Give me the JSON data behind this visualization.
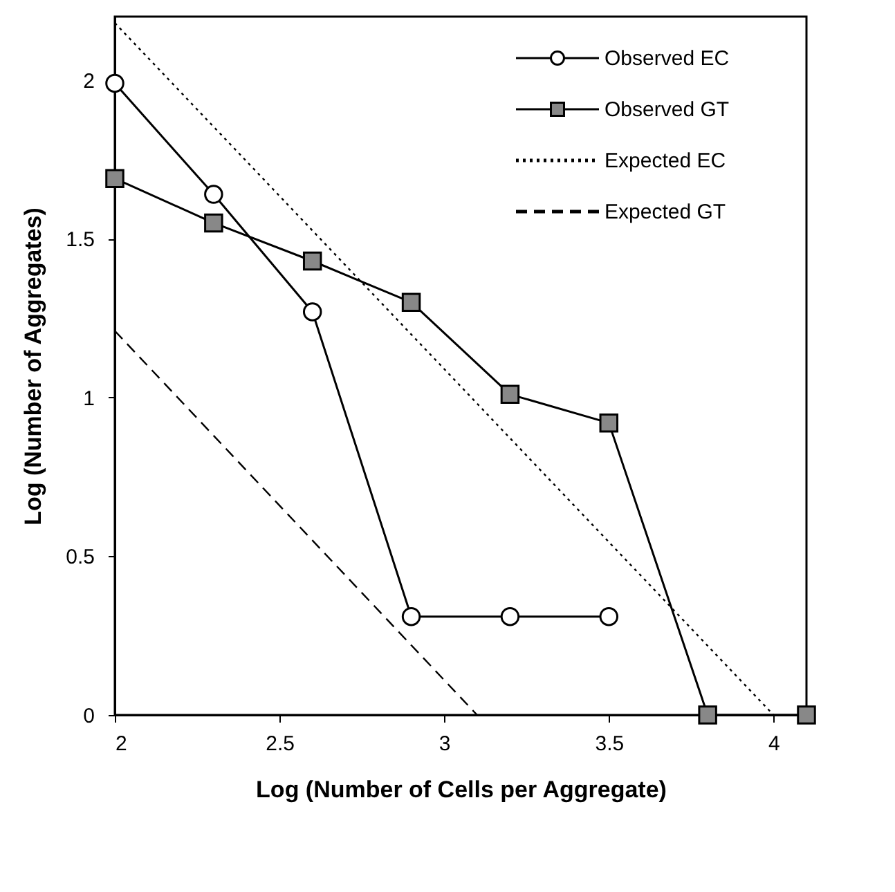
{
  "chart_data": {
    "type": "line",
    "xlabel": "Log (Number of Cells per Aggregate)",
    "ylabel": "Log (Number of Aggregates)",
    "xlim": [
      2,
      4.1
    ],
    "ylim": [
      0,
      2.2
    ],
    "xticks": [
      2,
      2.5,
      3,
      3.5,
      4
    ],
    "yticks": [
      0,
      0.5,
      1,
      1.5,
      2
    ],
    "grid": false,
    "legend": "top right",
    "series": [
      {
        "name": "Observed EC",
        "color": "#000000",
        "marker": "circle",
        "line_style": "solid",
        "x": [
          2,
          2.3,
          2.6,
          2.9,
          3.2,
          3.5
        ],
        "values": [
          1.99,
          1.64,
          1.27,
          0.31,
          0.31,
          0.31
        ]
      },
      {
        "name": "Observed GT",
        "color": "#000000",
        "marker": "square",
        "line_style": "solid",
        "x": [
          2,
          2.3,
          2.6,
          2.9,
          3.2,
          3.5,
          3.8,
          4.1
        ],
        "values": [
          1.69,
          1.55,
          1.43,
          1.3,
          1.01,
          0.92,
          0,
          0
        ]
      },
      {
        "name": "Expected EC",
        "color": "#000000",
        "marker": "none",
        "line_style": "dotted",
        "x": [
          2,
          4
        ],
        "values": [
          2.18,
          0
        ]
      },
      {
        "name": "Expected GT",
        "color": "#000000",
        "marker": "none",
        "line_style": "dashed",
        "x": [
          2,
          3.1
        ],
        "values": [
          1.21,
          0
        ]
      }
    ]
  }
}
